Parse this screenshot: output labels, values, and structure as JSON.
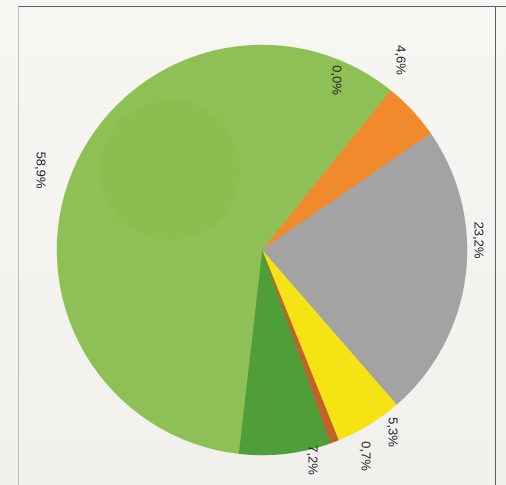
{
  "chart_data": {
    "type": "pie",
    "orientation": "rotated 90 degrees clockwise (scanned page)",
    "slices": [
      {
        "label": "4,6%",
        "value": 4.6,
        "color": "#f08a2c"
      },
      {
        "label": "23,2%",
        "value": 23.2,
        "color": "#a3a3a3"
      },
      {
        "label": "5,3%",
        "value": 5.3,
        "color": "#f6e314"
      },
      {
        "label": "0,7%",
        "value": 0.7,
        "color": "#c0622a"
      },
      {
        "label": "7,2%",
        "value": 7.2,
        "color": "#4f9e3a"
      },
      {
        "label": "58,9%",
        "value": 58.9,
        "color": "#8fc055"
      },
      {
        "label": "0,0%",
        "value": 0.0,
        "color": "#8fc055"
      }
    ],
    "legend": "none",
    "title": ""
  }
}
